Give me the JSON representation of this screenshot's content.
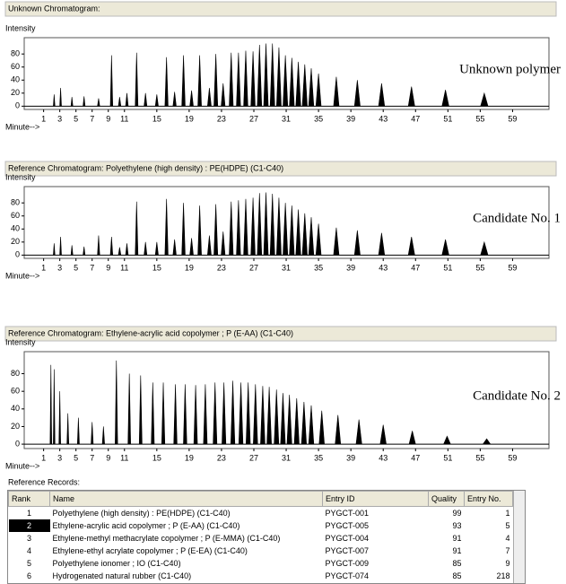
{
  "panels": [
    {
      "header": "Unknown Chromatogram:",
      "ylabel": "Intensity",
      "xlabel": "Minute-->",
      "annotation": "Unknown polymer",
      "xlim": [
        -1.4,
        63.5
      ],
      "ylim": [
        -5,
        105
      ],
      "yticks": [
        0,
        20,
        40,
        60,
        80
      ],
      "xticks": [
        1,
        3,
        5,
        7,
        9,
        11,
        15,
        19,
        23,
        27,
        31,
        35,
        39,
        43,
        47,
        51,
        55,
        59
      ],
      "peaks": {
        "x": [
          2.3,
          3.1,
          4.5,
          6.0,
          7.8,
          9.4,
          10.4,
          11.3,
          12.5,
          13.6,
          15.0,
          16.2,
          17.2,
          18.3,
          19.3,
          20.3,
          21.5,
          22.3,
          23.2,
          24.2,
          25.1,
          26.0,
          26.9,
          27.7,
          28.5,
          29.3,
          30.1,
          30.9,
          31.7,
          32.5,
          33.3,
          34.1,
          35.0,
          37.2,
          39.8,
          42.8,
          46.5,
          50.7,
          55.5
        ],
        "y": [
          18,
          28,
          14,
          15,
          12,
          78,
          14,
          20,
          82,
          20,
          18,
          75,
          22,
          78,
          24,
          78,
          28,
          80,
          35,
          82,
          82,
          85,
          84,
          94,
          96,
          96,
          90,
          78,
          74,
          68,
          64,
          58,
          50,
          45,
          40,
          35,
          30,
          25,
          20
        ]
      }
    },
    {
      "header": "Reference Chromatogram: Polyethylene (high density) : PE(HDPE)  (C1-C40)",
      "ylabel": "Intensity",
      "xlabel": "Minute-->",
      "annotation": "Candidate No. 1",
      "xlim": [
        -1.4,
        63.5
      ],
      "ylim": [
        -5,
        105
      ],
      "yticks": [
        0,
        20,
        40,
        60,
        80
      ],
      "xticks": [
        1,
        3,
        5,
        7,
        9,
        11,
        15,
        19,
        23,
        27,
        31,
        35,
        39,
        43,
        47,
        51,
        55,
        59
      ],
      "peaks": {
        "x": [
          2.3,
          3.1,
          4.5,
          6.0,
          7.8,
          9.4,
          10.4,
          11.3,
          12.5,
          13.6,
          15.0,
          16.2,
          17.2,
          18.3,
          19.3,
          20.3,
          21.5,
          22.3,
          23.2,
          24.2,
          25.1,
          26.0,
          26.9,
          27.7,
          28.5,
          29.3,
          30.1,
          30.9,
          31.7,
          32.5,
          33.3,
          34.1,
          35.0,
          37.2,
          39.8,
          42.8,
          46.5,
          50.7,
          55.5
        ],
        "y": [
          18,
          28,
          15,
          13,
          30,
          28,
          12,
          18,
          82,
          20,
          20,
          86,
          24,
          80,
          26,
          76,
          30,
          78,
          36,
          82,
          84,
          86,
          88,
          95,
          96,
          94,
          88,
          80,
          76,
          70,
          64,
          58,
          48,
          42,
          38,
          34,
          28,
          24,
          20
        ]
      }
    },
    {
      "header": "Reference Chromatogram: Ethylene-acrylic acid copolymer ; P (E-AA)  (C1-C40)",
      "ylabel": "Intensity",
      "xlabel": "Minute-->",
      "annotation": "Candidate No. 2",
      "xlim": [
        -1.4,
        63.5
      ],
      "ylim": [
        -5,
        105
      ],
      "yticks": [
        0,
        20,
        40,
        60,
        80
      ],
      "xticks": [
        1,
        3,
        5,
        7,
        9,
        11,
        15,
        19,
        23,
        27,
        31,
        35,
        39,
        43,
        47,
        51,
        55,
        59
      ],
      "peaks": {
        "x": [
          1.9,
          2.3,
          3.0,
          4.0,
          5.3,
          7.0,
          8.4,
          10.0,
          11.6,
          13.0,
          14.5,
          15.8,
          17.3,
          18.5,
          19.8,
          21.0,
          22.2,
          23.3,
          24.4,
          25.4,
          26.3,
          27.2,
          28.1,
          28.9,
          29.8,
          30.6,
          31.4,
          32.3,
          33.2,
          34.1,
          35.4,
          37.4,
          40.0,
          43.0,
          46.6,
          50.9,
          55.8
        ],
        "y": [
          90,
          85,
          60,
          35,
          30,
          25,
          20,
          95,
          80,
          78,
          70,
          70,
          68,
          68,
          67,
          68,
          70,
          70,
          72,
          70,
          70,
          68,
          66,
          65,
          62,
          58,
          56,
          52,
          48,
          44,
          38,
          33,
          28,
          22,
          15,
          9,
          6
        ]
      }
    }
  ],
  "records": {
    "title": "Reference Records:",
    "columns": [
      "Rank",
      "Name",
      "Entry ID",
      "Quality",
      "Entry No."
    ],
    "rows": [
      [
        "1",
        "Polyethylene (high density) : PE(HDPE)  (C1-C40)",
        "PYGCT-001",
        "99",
        "1"
      ],
      [
        "2",
        "Ethylene-acrylic acid copolymer ; P (E-AA)  (C1-C40)",
        "PYGCT-005",
        "93",
        "5"
      ],
      [
        "3",
        "Ethylene-methyl methacrylate copolymer ; P (E-MMA)  (C1-C40)",
        "PYGCT-004",
        "91",
        "4"
      ],
      [
        "4",
        "Ethylene-ethyl acrylate copolymer ; P (E-EA)  (C1-C40)",
        "PYGCT-007",
        "91",
        "7"
      ],
      [
        "5",
        "Polyethylene ionomer ; IO  (C1-C40)",
        "PYGCT-009",
        "85",
        "9"
      ],
      [
        "6",
        "Hydrogenated natural rubber  (C1-C40)",
        "PYGCT-074",
        "85",
        "218"
      ]
    ]
  }
}
